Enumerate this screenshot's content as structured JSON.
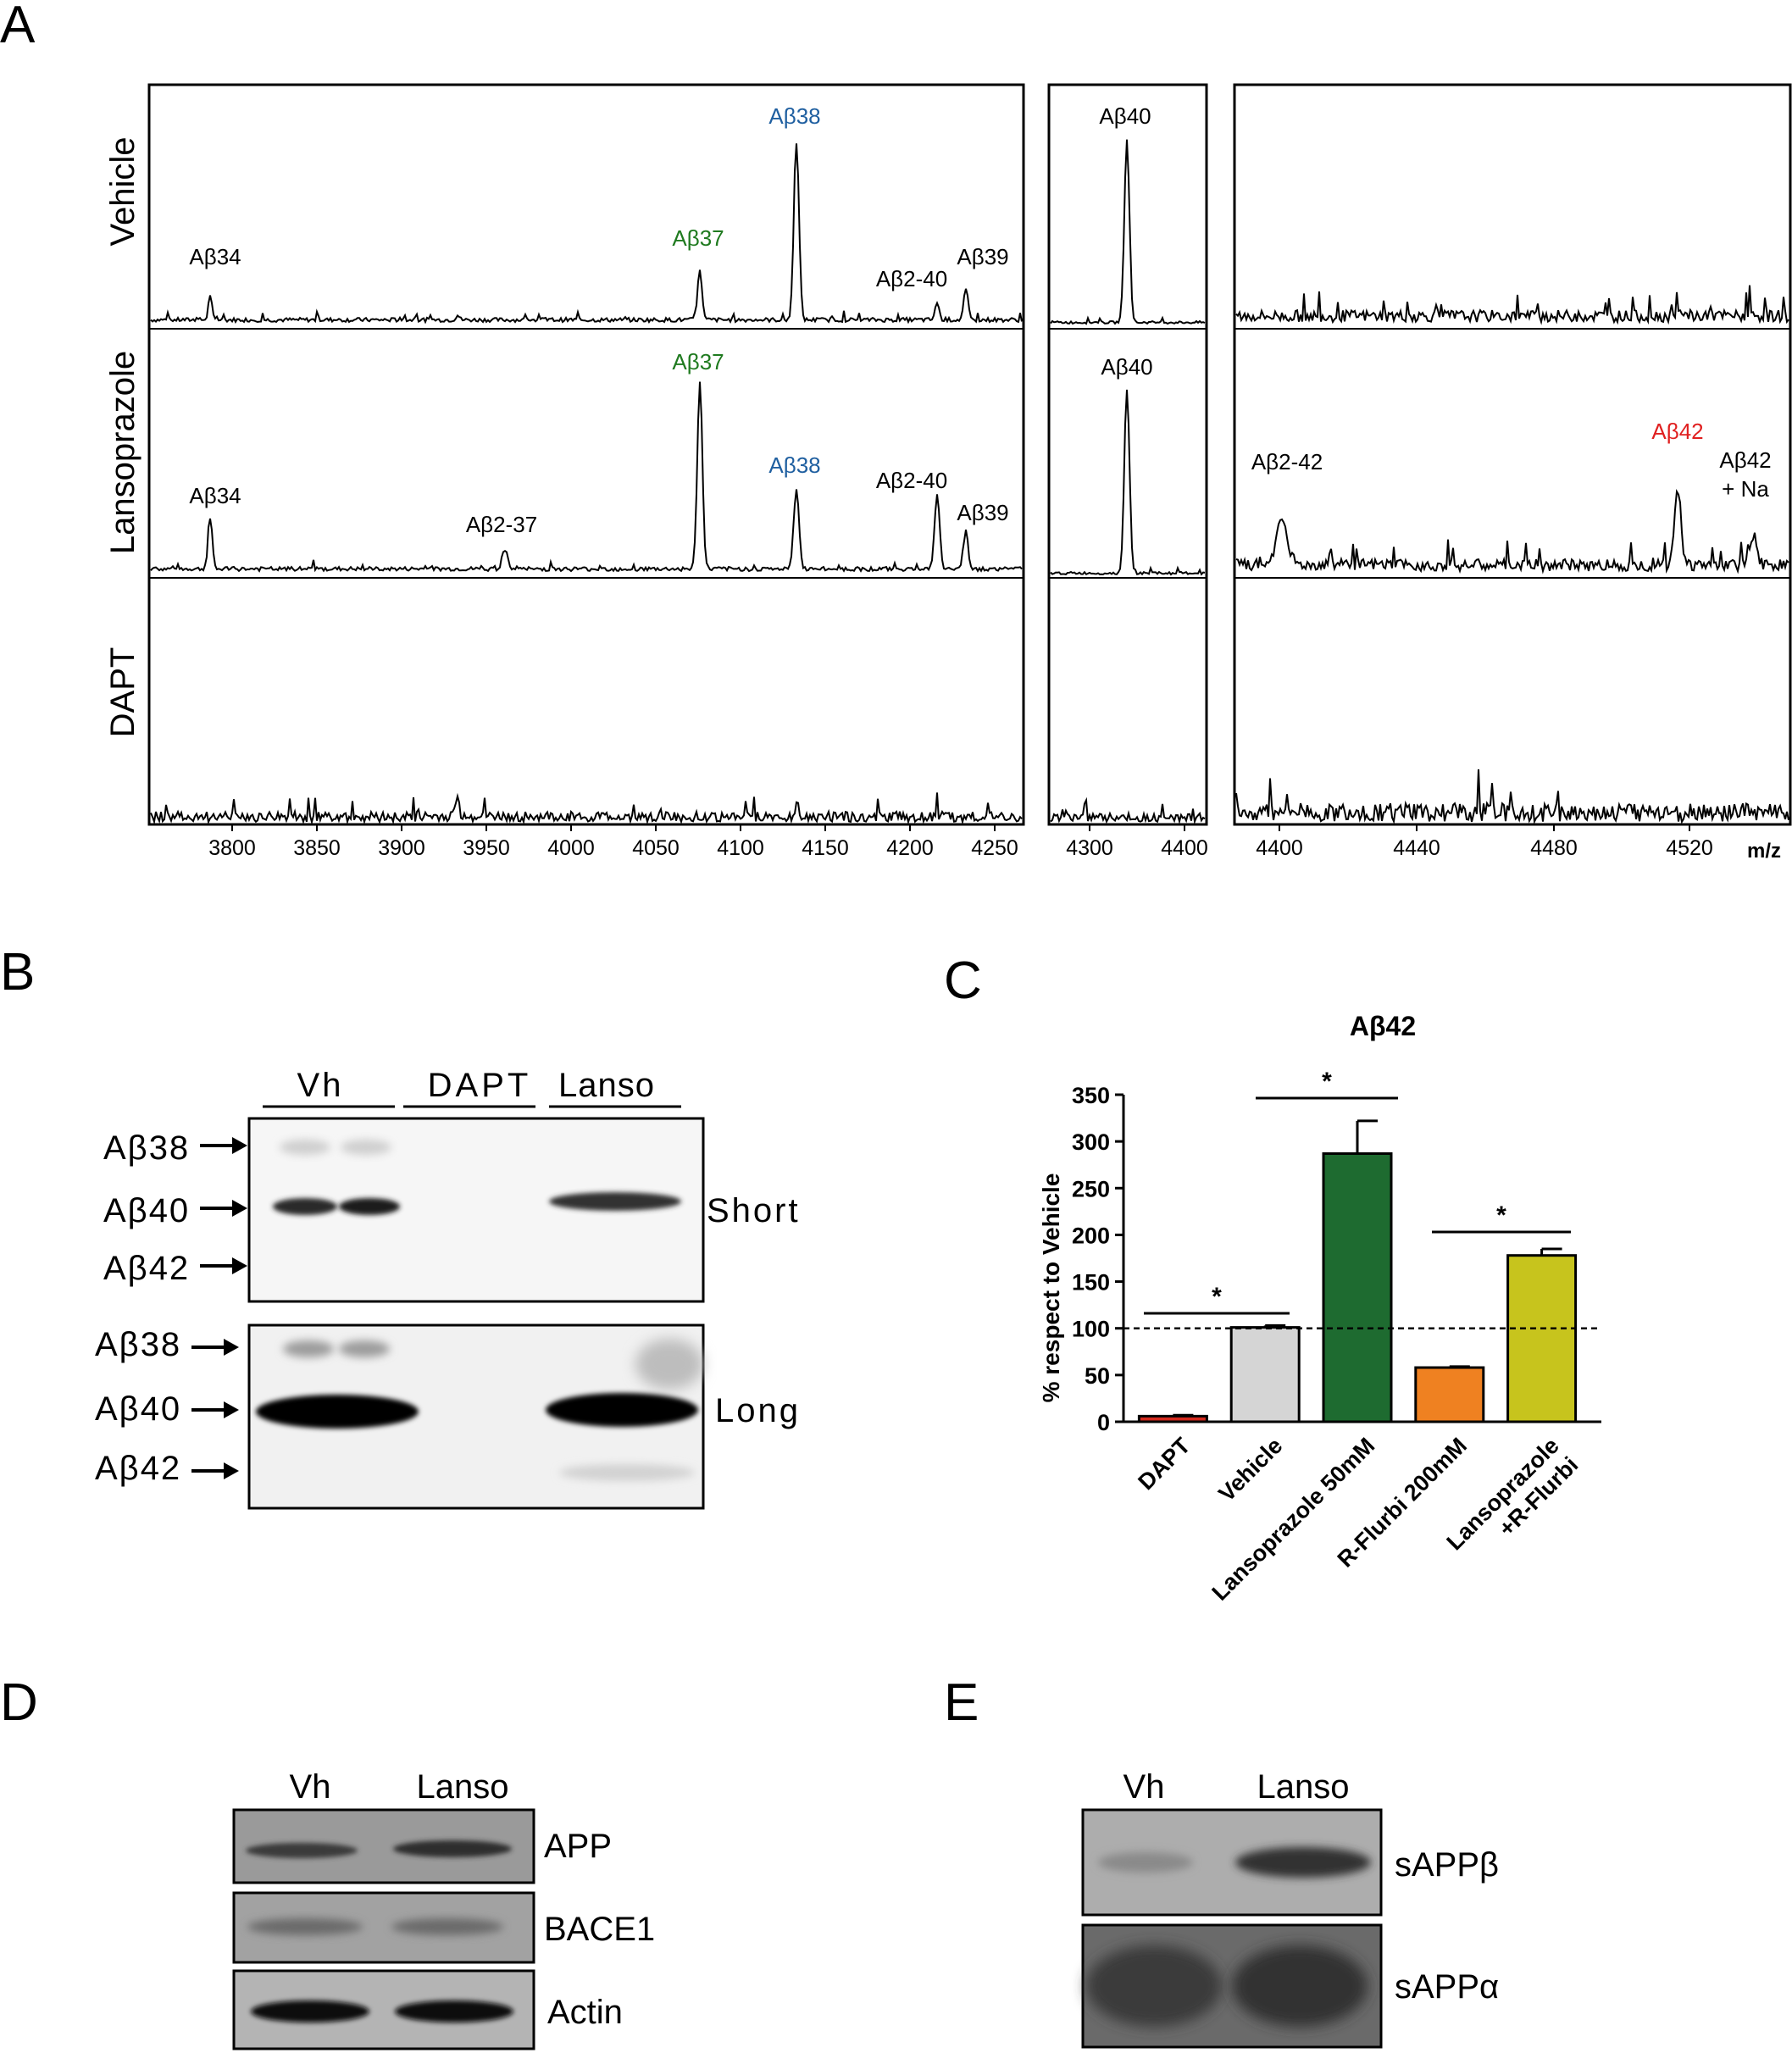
{
  "panel_letters": {
    "a": "A",
    "b": "B",
    "c": "C",
    "d": "D",
    "e": "E"
  },
  "colors": {
    "green": "#1f7a1f",
    "blue": "#1f5fa0",
    "red": "#e02020",
    "black": "#111111"
  },
  "panel_a": {
    "row_labels": [
      "Vehicle",
      "Lansoprazole",
      "DAPT"
    ],
    "axis_unit": "m/z",
    "peak_labels": {
      "ab34": "Aβ34",
      "ab37": "Aβ37",
      "ab38": "Aβ38",
      "ab2_40": "Aβ2-40",
      "ab39": "Aβ39",
      "ab2_37": "Aβ2-37",
      "ab40": "Aβ40",
      "ab2_42": "Aβ2-42",
      "ab42": "Aβ42",
      "ab42na_1": "Aβ42",
      "ab42na_2": "+ Na"
    },
    "ticks_1": [
      "3800",
      "3850",
      "3900",
      "3950",
      "4000",
      "4050",
      "4100",
      "4150",
      "4200",
      "4250"
    ],
    "ticks_2": [
      "4300",
      "4400"
    ],
    "ticks_3": [
      "4400",
      "4440",
      "4480",
      "4520"
    ]
  },
  "panel_b": {
    "lanes": [
      "Vh",
      "DAPT",
      "Lanso"
    ],
    "markers": [
      "Aβ38",
      "Aβ40",
      "Aβ42"
    ],
    "exposure_short": "Short",
    "exposure_long": "Long"
  },
  "chart_data": {
    "type": "bar",
    "title": "Aβ42",
    "ylabel": "% respect to Vehicle",
    "xlabel": "",
    "ylim": [
      0,
      350
    ],
    "yticks": [
      "0",
      "50",
      "100",
      "150",
      "200",
      "250",
      "300",
      "350"
    ],
    "categories": [
      "DAPT",
      "Vehicle",
      "Lansoprazole 50mM",
      "R-Flurbi 200mM",
      "Lansoprazole\n+R-Flurbi"
    ],
    "values": [
      6,
      101,
      287,
      58,
      178
    ],
    "errors": [
      1,
      2,
      35,
      1,
      7
    ],
    "bar_colors": [
      "#d42a1e",
      "#d5d5d5",
      "#1e6b30",
      "#ef8121",
      "#c7c41d"
    ],
    "reference_line": 100,
    "significance": [
      {
        "from": 0,
        "to": 1,
        "label": "*"
      },
      {
        "from": 1,
        "to": 2,
        "label": "*"
      },
      {
        "from": 3,
        "to": 4,
        "label": "*"
      }
    ]
  },
  "panel_d": {
    "lanes": [
      "Vh",
      "Lanso"
    ],
    "blots": [
      "APP",
      "BACE1",
      "Actin"
    ]
  },
  "panel_e": {
    "lanes": [
      "Vh",
      "Lanso"
    ],
    "blots": [
      "sAPPβ",
      "sAPPα"
    ]
  }
}
